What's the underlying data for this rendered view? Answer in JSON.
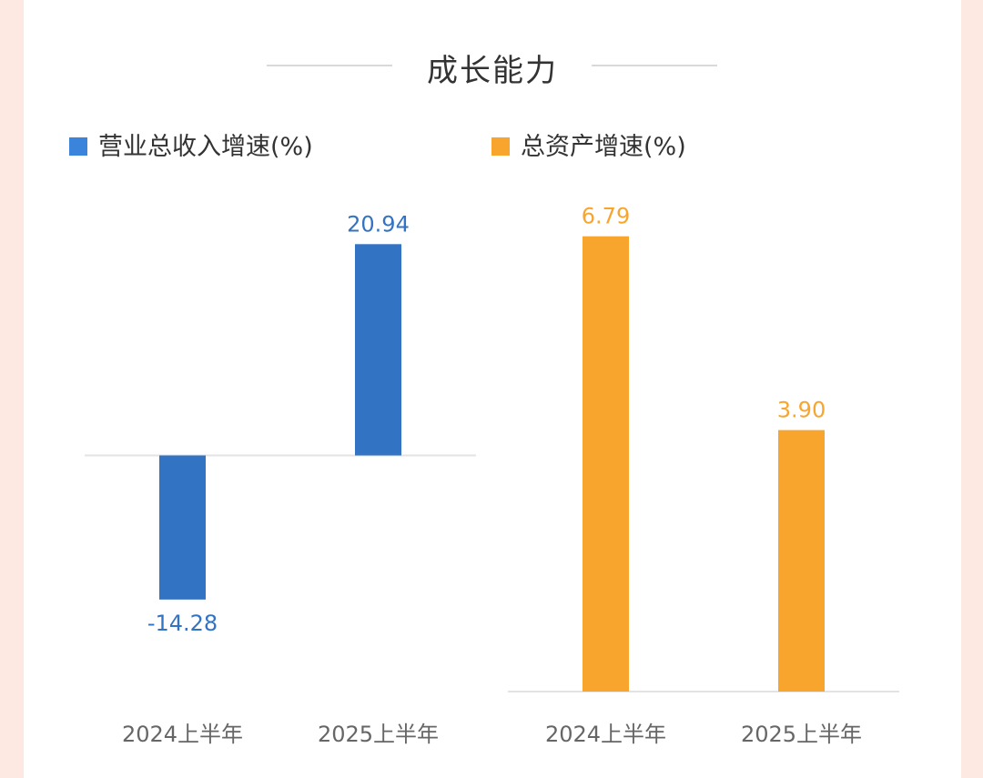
{
  "page": {
    "title": "成长能力"
  },
  "chart_data": [
    {
      "type": "bar",
      "title": "营业总收入增速(%)",
      "categories": [
        "2024上半年",
        "2025上半年"
      ],
      "series": [
        {
          "name": "营业总收入增速(%)",
          "values": [
            -14.28,
            20.94
          ],
          "labels": [
            "-14.28",
            "20.94"
          ]
        }
      ],
      "color": "#3273c3",
      "legend_swatch_color": "#3a85db",
      "ylim": [
        -23.4,
        27.1
      ],
      "grid": false,
      "legend": "top-left"
    },
    {
      "type": "bar",
      "title": "总资产增速(%)",
      "categories": [
        "2024上半年",
        "2025上半年"
      ],
      "series": [
        {
          "name": "总资产增速(%)",
          "values": [
            6.79,
            3.9
          ],
          "labels": [
            "6.79",
            "3.90"
          ]
        }
      ],
      "color": "#f8a52d",
      "legend_swatch_color": "#f8a52d",
      "ylim": [
        0,
        7.6
      ],
      "grid": false,
      "legend": "top-left"
    }
  ]
}
